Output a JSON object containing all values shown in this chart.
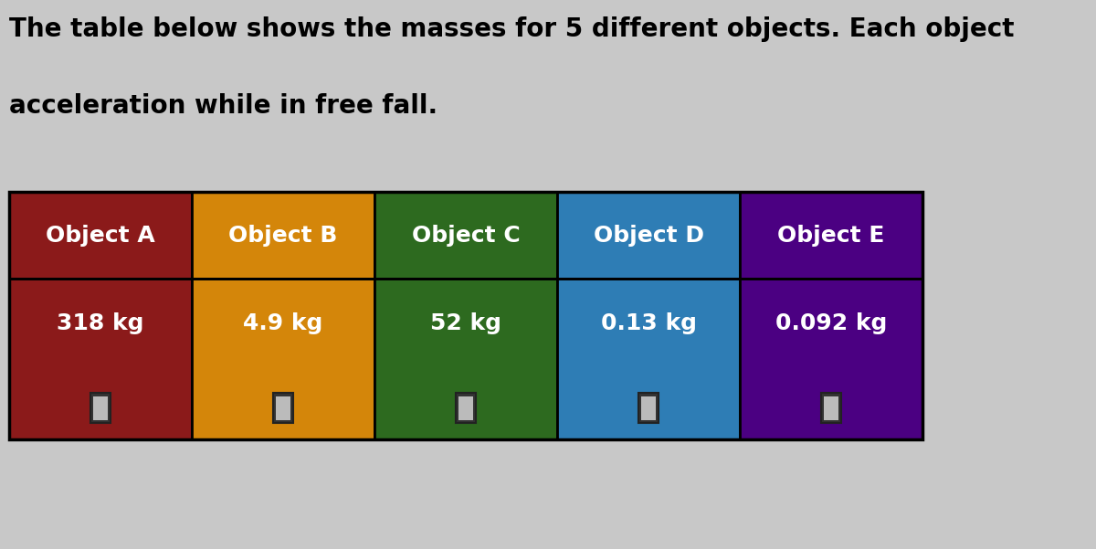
{
  "title_line1": "The table below shows the masses for 5 different objects. Each object",
  "title_line2": "acceleration while in free fall.",
  "objects": [
    "Object A",
    "Object B",
    "Object C",
    "Object D",
    "Object E"
  ],
  "masses": [
    "318 kg",
    "4.9 kg",
    "52 kg",
    "0.13 kg",
    "0.092 kg"
  ],
  "header_colors": [
    "#8B1A1A",
    "#D4860A",
    "#2D6A1F",
    "#2E7DB5",
    "#4B0082"
  ],
  "row_colors": [
    "#8B1A1A",
    "#D4860A",
    "#2D6A1F",
    "#2E7DB5",
    "#4B0082"
  ],
  "bg_color": "#C8C8C8",
  "text_color": "#FFFFFF",
  "title_color": "#000000",
  "title_fontsize": 20,
  "cell_text_fontsize": 18,
  "header_fontsize": 18
}
